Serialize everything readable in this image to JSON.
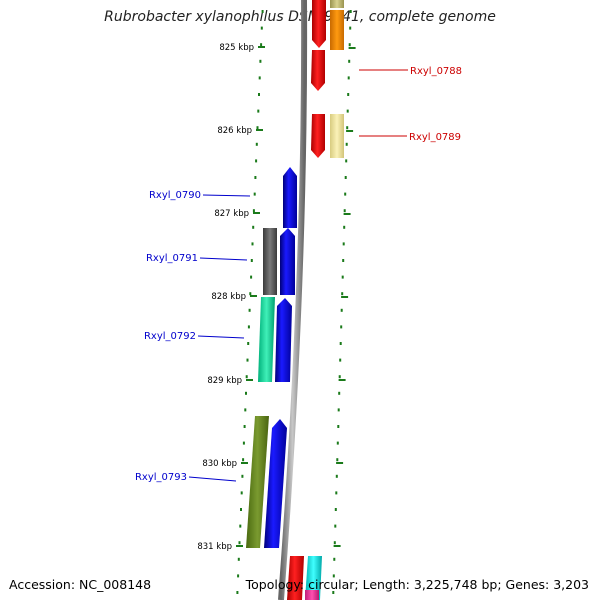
{
  "title": "Rubrobacter xylanophilus DSM 9941, complete genome",
  "footer": {
    "accession": "Accession: NC_008148",
    "summary": "Topology: circular; Length: 3,225,748 bp; Genes: 3,203"
  },
  "colors": {
    "forward_label": "#cc0000",
    "reverse_label": "#0000cc",
    "tick": "#1a7a1a",
    "backbone": "#888888"
  },
  "ticks": [
    "825 kbp",
    "826 kbp",
    "827 kbp",
    "828 kbp",
    "829 kbp",
    "830 kbp",
    "831 kbp"
  ],
  "gene_labels": [
    {
      "name": "Rxyl_0788",
      "strand": "forward"
    },
    {
      "name": "Rxyl_0789",
      "strand": "forward"
    },
    {
      "name": "Rxyl_0790",
      "strand": "reverse"
    },
    {
      "name": "Rxyl_0791",
      "strand": "reverse"
    },
    {
      "name": "Rxyl_0792",
      "strand": "reverse"
    },
    {
      "name": "Rxyl_0793",
      "strand": "reverse"
    }
  ]
}
